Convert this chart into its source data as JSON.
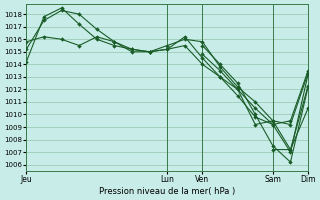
{
  "xlabel": "Pression niveau de la mer( hPa )",
  "bg_color": "#c8ede8",
  "grid_color": "#5a9a6a",
  "line_color": "#1a5c28",
  "vline_color": "#3a7a4a",
  "ylim": [
    1005.5,
    1018.8
  ],
  "yticks": [
    1006,
    1007,
    1008,
    1009,
    1010,
    1011,
    1012,
    1013,
    1014,
    1015,
    1016,
    1017,
    1018
  ],
  "xlim": [
    0,
    96
  ],
  "xtick_positions": [
    0,
    48,
    60,
    84,
    96
  ],
  "xtick_labels": [
    "Jeu",
    "Lun",
    "Ven",
    "Sam",
    "Dim"
  ],
  "vline_positions": [
    0,
    48,
    60,
    84,
    96
  ],
  "series": [
    {
      "x": [
        0,
        6,
        12,
        18,
        24,
        30,
        36,
        42,
        48,
        54,
        60,
        66,
        72,
        78,
        84,
        90,
        96
      ],
      "y": [
        1014.2,
        1017.8,
        1018.5,
        1017.2,
        1016.0,
        1015.5,
        1015.2,
        1015.0,
        1015.5,
        1016.0,
        1015.8,
        1013.8,
        1012.2,
        1011.0,
        1009.5,
        1009.2,
        1013.3
      ]
    },
    {
      "x": [
        0,
        6,
        12,
        18,
        24,
        30,
        36,
        42,
        48,
        54,
        60,
        66,
        72,
        78,
        84,
        90,
        96
      ],
      "y": [
        1015.2,
        1017.5,
        1018.3,
        1018.0,
        1016.8,
        1015.8,
        1015.2,
        1015.0,
        1015.2,
        1016.2,
        1014.5,
        1013.0,
        1011.5,
        1009.8,
        1009.2,
        1009.5,
        1013.5
      ]
    },
    {
      "x": [
        0,
        6,
        12,
        18,
        24,
        30,
        36,
        42,
        48,
        54,
        60,
        66,
        72,
        78,
        84,
        90,
        96
      ],
      "y": [
        1015.8,
        1016.2,
        1016.0,
        1015.5,
        1016.2,
        1015.8,
        1015.0,
        1015.0,
        1015.2,
        1015.5,
        1014.0,
        1013.0,
        1012.0,
        1010.5,
        1009.2,
        1007.0,
        1013.2
      ]
    },
    {
      "x": [
        60,
        66,
        72,
        78,
        84,
        90,
        96
      ],
      "y": [
        1014.8,
        1013.5,
        1012.0,
        1009.2,
        1009.5,
        1007.2,
        1010.5
      ]
    },
    {
      "x": [
        60,
        66,
        72,
        78,
        84,
        90,
        96
      ],
      "y": [
        1015.5,
        1014.0,
        1012.5,
        1010.0,
        1007.5,
        1006.2,
        1012.2
      ]
    },
    {
      "x": [
        84,
        90,
        96
      ],
      "y": [
        1007.2,
        1007.2,
        1012.3
      ]
    }
  ]
}
